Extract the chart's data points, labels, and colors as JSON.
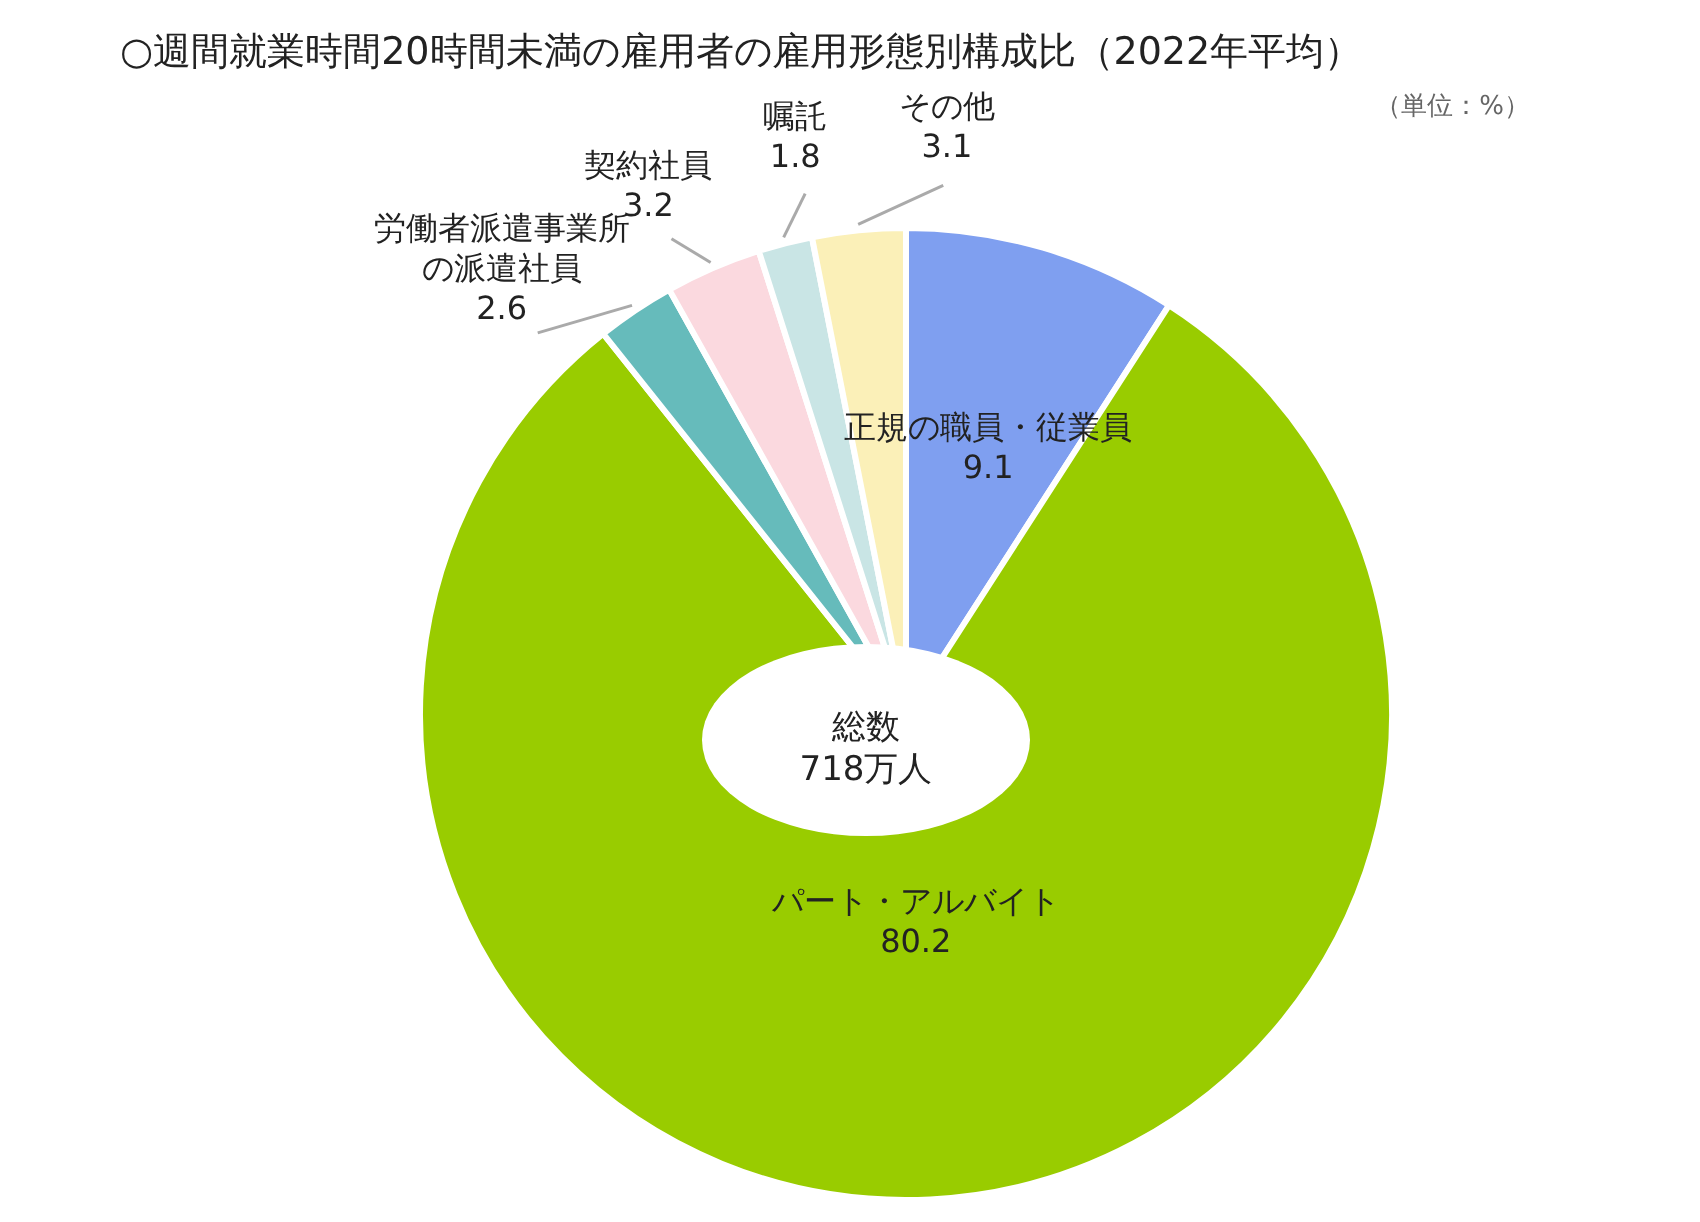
{
  "chart_data": {
    "type": "pie",
    "title": "○週間就業時間20時間未満の雇用者の雇用形態別構成比（2022年平均）",
    "subtitle": "（単位：%）",
    "categories": [
      "正規の職員・従業員",
      "パート・アルバイト",
      "労働者派遣事業所の派遣社員",
      "契約社員",
      "嘱託",
      "その他"
    ],
    "values": [
      9.1,
      80.2,
      2.6,
      3.2,
      1.8,
      3.1
    ],
    "colors": [
      "#7f9ff0",
      "#99cc00",
      "#66bbbb",
      "#fbd9df",
      "#c9e5e5",
      "#fbf0b8"
    ],
    "data_labels": true,
    "legend": false,
    "annotations": [
      "総数\n718万人"
    ]
  }
}
